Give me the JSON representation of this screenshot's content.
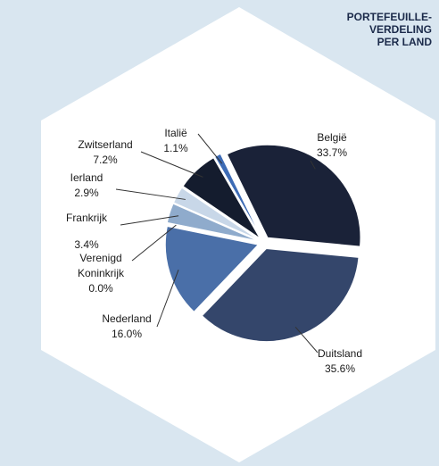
{
  "chart_data": {
    "type": "pie",
    "title": [
      "PORTEFEUILLE-",
      "VERDELING",
      "PER LAND"
    ],
    "categories": [
      "België",
      "Duitsland",
      "Nederland",
      "Verenigd Koninkrijk",
      "Frankrijk",
      "Ierland",
      "Zwitserland",
      "Italië"
    ],
    "values": [
      33.7,
      35.6,
      16.0,
      0.0,
      3.4,
      2.9,
      7.2,
      1.1
    ],
    "value_labels": [
      "33.7%",
      "35.6%",
      "16.0%",
      "0.0%",
      "3.4%",
      "2.9%",
      "7.2%",
      "1.1%"
    ],
    "colors": [
      "#1a2238",
      "#34466b",
      "#4a6fa8",
      "#6f8fbf",
      "#8fabcc",
      "#c8d7e8",
      "#141c2e",
      "#3d6bb5"
    ]
  }
}
